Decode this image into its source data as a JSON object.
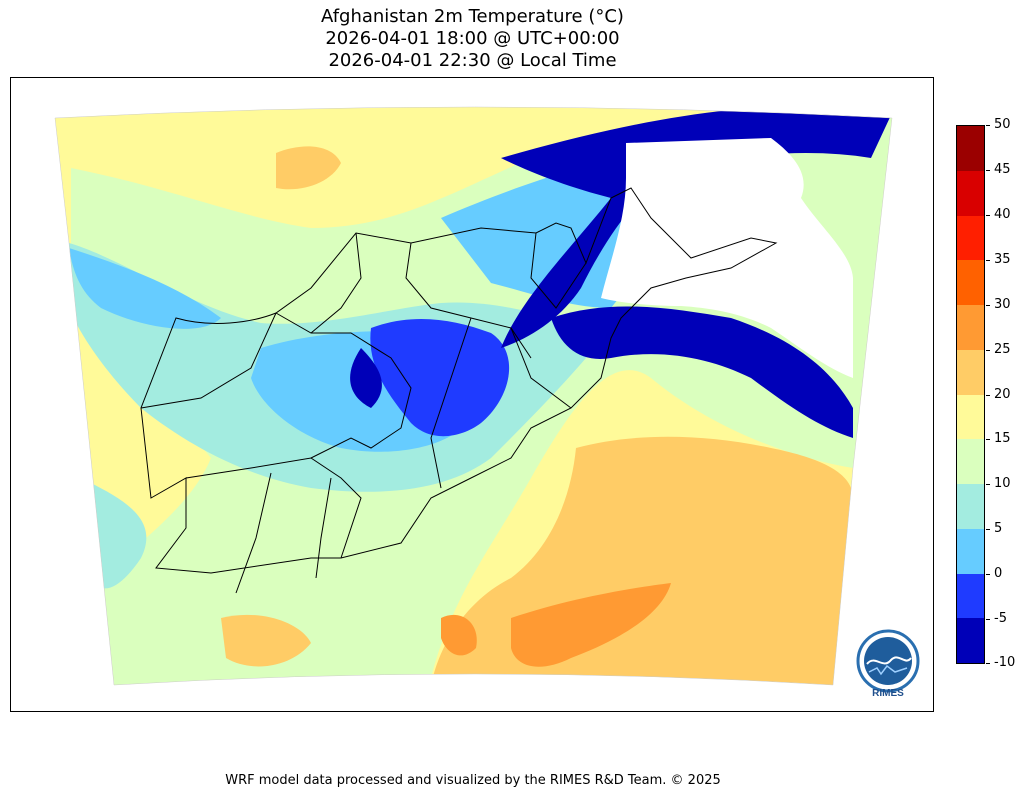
{
  "title": {
    "line1": "Afghanistan 2m Temperature (°C)",
    "line2": "2026-04-01 18:00 @ UTC+00:00",
    "line3": "2026-04-01 22:30 @ Local Time"
  },
  "colorbar": {
    "levels": [
      "50",
      "45",
      "40",
      "35",
      "30",
      "25",
      "20",
      "15",
      "10",
      "5",
      "0",
      "-5",
      "-10"
    ],
    "colors_top_to_bottom": [
      "#9b0000",
      "#d90000",
      "#ff1f00",
      "#ff6100",
      "#ff9a33",
      "#ffcc66",
      "#fffa99",
      "#daffbe",
      "#a3ece0",
      "#66ccff",
      "#1f3bff",
      "#0000b8"
    ]
  },
  "palette": {
    "cold_white": "#ffffff",
    "lt_minus10": "#0000b8",
    "m10_m5": "#0000b8",
    "m5_0": "#1f3bff",
    "z0_5": "#66ccff",
    "z5_10": "#a3ece0",
    "z10_15": "#daffbe",
    "z15_20": "#fffa99",
    "z20_25": "#ffcc66",
    "z25_30": "#ff9a33"
  },
  "logo": {
    "text": "RIMES",
    "ring_text": "Regional Integrated Multi-Hazard Early Warning System"
  },
  "footer": "WRF model data processed and visualized by the RIMES R&D Team. © 2025"
}
